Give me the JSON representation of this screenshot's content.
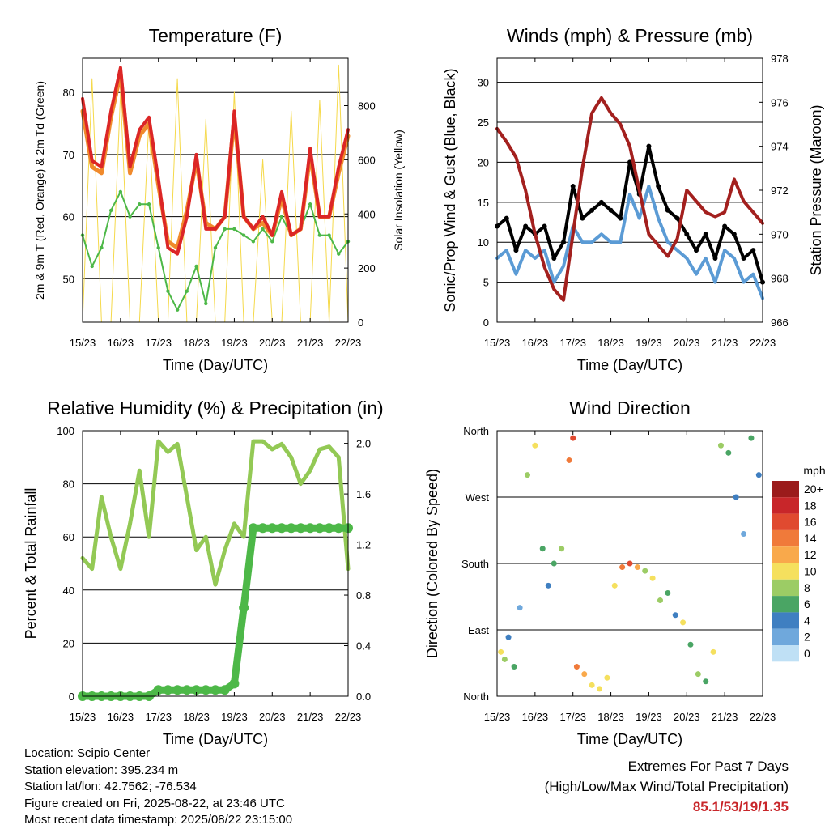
{
  "colors": {
    "temp2m": "#dc2626",
    "temp9m": "#f08a2c",
    "dewpoint": "#4db848",
    "solar": "#f5d94a",
    "wind": "#000000",
    "gust": "#5b9bd5",
    "pressure": "#a3201e",
    "rh": "#93c955",
    "precip": "#4db848",
    "extremes": "#c8262a"
  },
  "time_ticks": [
    "15/23",
    "16/23",
    "17/23",
    "18/23",
    "19/23",
    "20/23",
    "21/23",
    "22/23"
  ],
  "chart_data": [
    {
      "type": "line",
      "title": "Temperature (F)",
      "xlabel": "Time (Day/UTC)",
      "ylabel": "2m & 9m T (Red, Orange) & 2m Td (Green)",
      "ylabel_right": "Solar Insolation (Yellow)",
      "ylim": [
        43,
        85.5
      ],
      "ylim_right": [
        0,
        975
      ],
      "yticks": [
        50,
        60,
        70,
        80
      ],
      "yticks_right": [
        0,
        200,
        400,
        600,
        800
      ],
      "x": [
        0,
        0.25,
        0.5,
        0.75,
        1,
        1.25,
        1.5,
        1.75,
        2,
        2.25,
        2.5,
        2.75,
        3,
        3.25,
        3.5,
        3.75,
        4,
        4.25,
        4.5,
        4.75,
        5,
        5.25,
        5.5,
        5.75,
        6,
        6.25,
        6.5,
        6.75,
        7
      ],
      "series": [
        {
          "values": [
            79,
            69,
            68,
            77,
            84,
            68,
            74,
            76,
            66,
            55,
            54,
            60,
            70,
            58,
            58,
            60,
            77,
            60,
            58,
            60,
            57,
            64,
            57,
            58,
            71,
            60,
            60,
            68,
            74
          ]
        },
        {
          "values": [
            77,
            68,
            67,
            76,
            83,
            67,
            73,
            75,
            65,
            56,
            55,
            61,
            69,
            59,
            58,
            60,
            76,
            60,
            58,
            59,
            57,
            63,
            57,
            58,
            70,
            60,
            60,
            67,
            73
          ]
        },
        {
          "values": [
            57,
            52,
            55,
            61,
            64,
            60,
            62,
            62,
            55,
            48,
            45,
            48,
            52,
            46,
            55,
            58,
            58,
            57,
            56,
            58,
            56,
            60,
            57,
            58,
            62,
            57,
            57,
            54,
            56
          ]
        },
        {
          "values": [
            0,
            900,
            0,
            0,
            850,
            0,
            0,
            750,
            0,
            0,
            900,
            0,
            0,
            750,
            0,
            0,
            850,
            0,
            0,
            600,
            0,
            0,
            780,
            0,
            0,
            820,
            0,
            950,
            0
          ]
        }
      ]
    },
    {
      "type": "line",
      "title": "Winds (mph) & Pressure (mb)",
      "xlabel": "Time (Day/UTC)",
      "ylabel": "Sonic/Prop Wind & Gust (Blue, Black)",
      "ylabel_right": "Station Pressure (Maroon)",
      "ylim": [
        0,
        33
      ],
      "ylim_right": [
        966,
        978
      ],
      "yticks": [
        0,
        5,
        10,
        15,
        20,
        25,
        30
      ],
      "yticks_right": [
        966,
        968,
        970,
        972,
        974,
        976,
        978
      ],
      "x": [
        0,
        0.25,
        0.5,
        0.75,
        1,
        1.25,
        1.5,
        1.75,
        2,
        2.25,
        2.5,
        2.75,
        3,
        3.25,
        3.5,
        3.75,
        4,
        4.25,
        4.5,
        4.75,
        5,
        5.25,
        5.5,
        5.75,
        6,
        6.25,
        6.5,
        6.75,
        7
      ],
      "series": [
        {
          "values": [
            12,
            13,
            9,
            12,
            11,
            12,
            8,
            10,
            17,
            13,
            14,
            15,
            14,
            13,
            20,
            16,
            22,
            17,
            14,
            13,
            11,
            9,
            11,
            8,
            12,
            11,
            8,
            9,
            5
          ]
        },
        {
          "values": [
            8,
            9,
            6,
            9,
            8,
            9,
            5,
            7,
            12,
            10,
            10,
            11,
            10,
            10,
            16,
            13,
            17,
            13,
            10,
            9,
            8,
            6,
            8,
            5,
            9,
            8,
            5,
            6,
            3
          ]
        },
        {
          "values": [
            974.8,
            974.2,
            973.5,
            972,
            970,
            968.5,
            967.5,
            967,
            970,
            973,
            975.5,
            976.2,
            975.5,
            975,
            974,
            972,
            970,
            969.5,
            969,
            969.8,
            972,
            971.5,
            971,
            970.8,
            971,
            972.5,
            971.5,
            971,
            970.5
          ]
        }
      ]
    },
    {
      "type": "line",
      "title": "Relative Humidity (%) & Precipitation (in)",
      "xlabel": "Time (Day/UTC)",
      "ylabel": "Percent & Total Rainfall",
      "ylim": [
        0,
        100
      ],
      "ylim_right": [
        0,
        2.1
      ],
      "yticks": [
        0,
        20,
        40,
        60,
        80,
        100
      ],
      "yticks_right": [
        0.0,
        0.4,
        0.8,
        1.2,
        1.6,
        2.0
      ],
      "x": [
        0,
        0.25,
        0.5,
        0.75,
        1,
        1.25,
        1.5,
        1.75,
        2,
        2.25,
        2.5,
        2.75,
        3,
        3.25,
        3.5,
        3.75,
        4,
        4.25,
        4.5,
        4.75,
        5,
        5.25,
        5.5,
        5.75,
        6,
        6.25,
        6.5,
        6.75,
        7
      ],
      "series": [
        {
          "values": [
            52,
            48,
            75,
            60,
            48,
            65,
            85,
            60,
            96,
            92,
            95,
            75,
            55,
            60,
            42,
            55,
            65,
            60,
            96,
            96,
            93,
            95,
            90,
            80,
            85,
            93,
            94,
            90,
            48
          ]
        },
        {
          "values": [
            0,
            0,
            0,
            0,
            0,
            0,
            0,
            0,
            0.05,
            0.05,
            0.05,
            0.05,
            0.05,
            0.05,
            0.05,
            0.05,
            0.1,
            0.7,
            1.33,
            1.33,
            1.33,
            1.33,
            1.33,
            1.33,
            1.33,
            1.33,
            1.33,
            1.33,
            1.33
          ]
        }
      ]
    },
    {
      "type": "scatter",
      "title": "Wind Direction",
      "xlabel": "Time (Day/UTC)",
      "ylabel": "Direction (Colored By Speed)",
      "ytick_labels": [
        "North",
        "East",
        "South",
        "West",
        "North"
      ],
      "ylim": [
        0,
        360
      ],
      "legend_title": "mph",
      "legend_labels": [
        "20+",
        "18",
        "16",
        "14",
        "12",
        "10",
        "8",
        "6",
        "4",
        "2",
        "0"
      ],
      "legend_colors": [
        "#9b1b1b",
        "#c8262a",
        "#e04a30",
        "#f07a3a",
        "#f9a94b",
        "#f5e05e",
        "#9ccc65",
        "#4aa564",
        "#3f7fc1",
        "#6fa8dc",
        "#bfe0f5"
      ],
      "x": [
        0.1,
        0.2,
        0.3,
        0.45,
        0.6,
        0.8,
        1.0,
        1.2,
        1.35,
        1.5,
        1.7,
        1.9,
        2.0,
        2.1,
        2.3,
        2.5,
        2.7,
        2.9,
        3.1,
        3.3,
        3.5,
        3.7,
        3.9,
        4.1,
        4.3,
        4.5,
        4.7,
        4.9,
        5.1,
        5.3,
        5.5,
        5.7,
        5.9,
        6.1,
        6.3,
        6.5,
        6.7,
        6.9
      ],
      "y": [
        60,
        50,
        80,
        40,
        120,
        300,
        340,
        200,
        150,
        180,
        200,
        320,
        350,
        40,
        30,
        15,
        10,
        25,
        150,
        175,
        180,
        175,
        170,
        160,
        130,
        140,
        110,
        100,
        70,
        30,
        20,
        60,
        340,
        330,
        270,
        220,
        350,
        300
      ],
      "values": [
        10,
        8,
        4,
        6,
        2,
        8,
        9,
        5,
        4,
        6,
        8,
        14,
        16,
        14,
        12,
        10,
        9,
        10,
        9,
        14,
        16,
        12,
        8,
        9,
        8,
        6,
        4,
        10,
        6,
        8,
        5,
        9,
        8,
        6,
        4,
        2,
        6,
        4
      ]
    }
  ],
  "info": {
    "location": "Location: Scipio Center",
    "elevation": "Station elevation: 395.234 m",
    "latlon": "Station lat/lon: 42.7562; -76.534",
    "created": "Figure created on Fri, 2025-08-22, at 23:46 UTC",
    "recent": "Most recent data timestamp: 2025/08/22 23:15:00"
  },
  "extremes": {
    "title": "Extremes For Past 7 Days",
    "subtitle": "(High/Low/Max Wind/Total Precipitation)",
    "values": "85.1/53/19/1.35"
  }
}
